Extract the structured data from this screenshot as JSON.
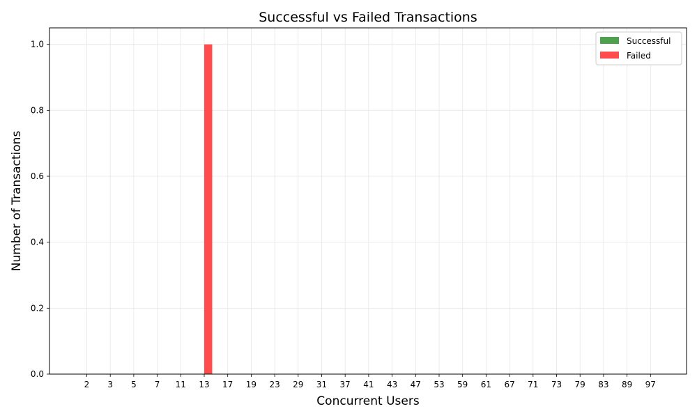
{
  "chart_data": {
    "type": "bar",
    "title": "Successful vs Failed Transactions",
    "xlabel": "Concurrent Users",
    "ylabel": "Number of Transactions",
    "categories": [
      "2",
      "3",
      "5",
      "7",
      "11",
      "13",
      "17",
      "19",
      "23",
      "29",
      "31",
      "37",
      "41",
      "43",
      "47",
      "53",
      "59",
      "61",
      "67",
      "71",
      "73",
      "79",
      "83",
      "89",
      "97"
    ],
    "series": [
      {
        "name": "Successful",
        "color": "#4ea24e",
        "values": [
          0,
          0,
          0,
          0,
          0,
          0,
          0,
          0,
          0,
          0,
          0,
          0,
          0,
          0,
          0,
          0,
          0,
          0,
          0,
          0,
          0,
          0,
          0,
          0,
          0
        ]
      },
      {
        "name": "Failed",
        "color": "#ff4c4c",
        "values": [
          0,
          0,
          0,
          0,
          0,
          1,
          0,
          0,
          0,
          0,
          0,
          0,
          0,
          0,
          0,
          0,
          0,
          0,
          0,
          0,
          0,
          0,
          0,
          0,
          0
        ]
      }
    ],
    "ylim": [
      0,
      1.05
    ],
    "yticks": [
      "0.0",
      "0.2",
      "0.4",
      "0.6",
      "0.8",
      "1.0"
    ],
    "grid": true,
    "legend_position": "top-right"
  }
}
